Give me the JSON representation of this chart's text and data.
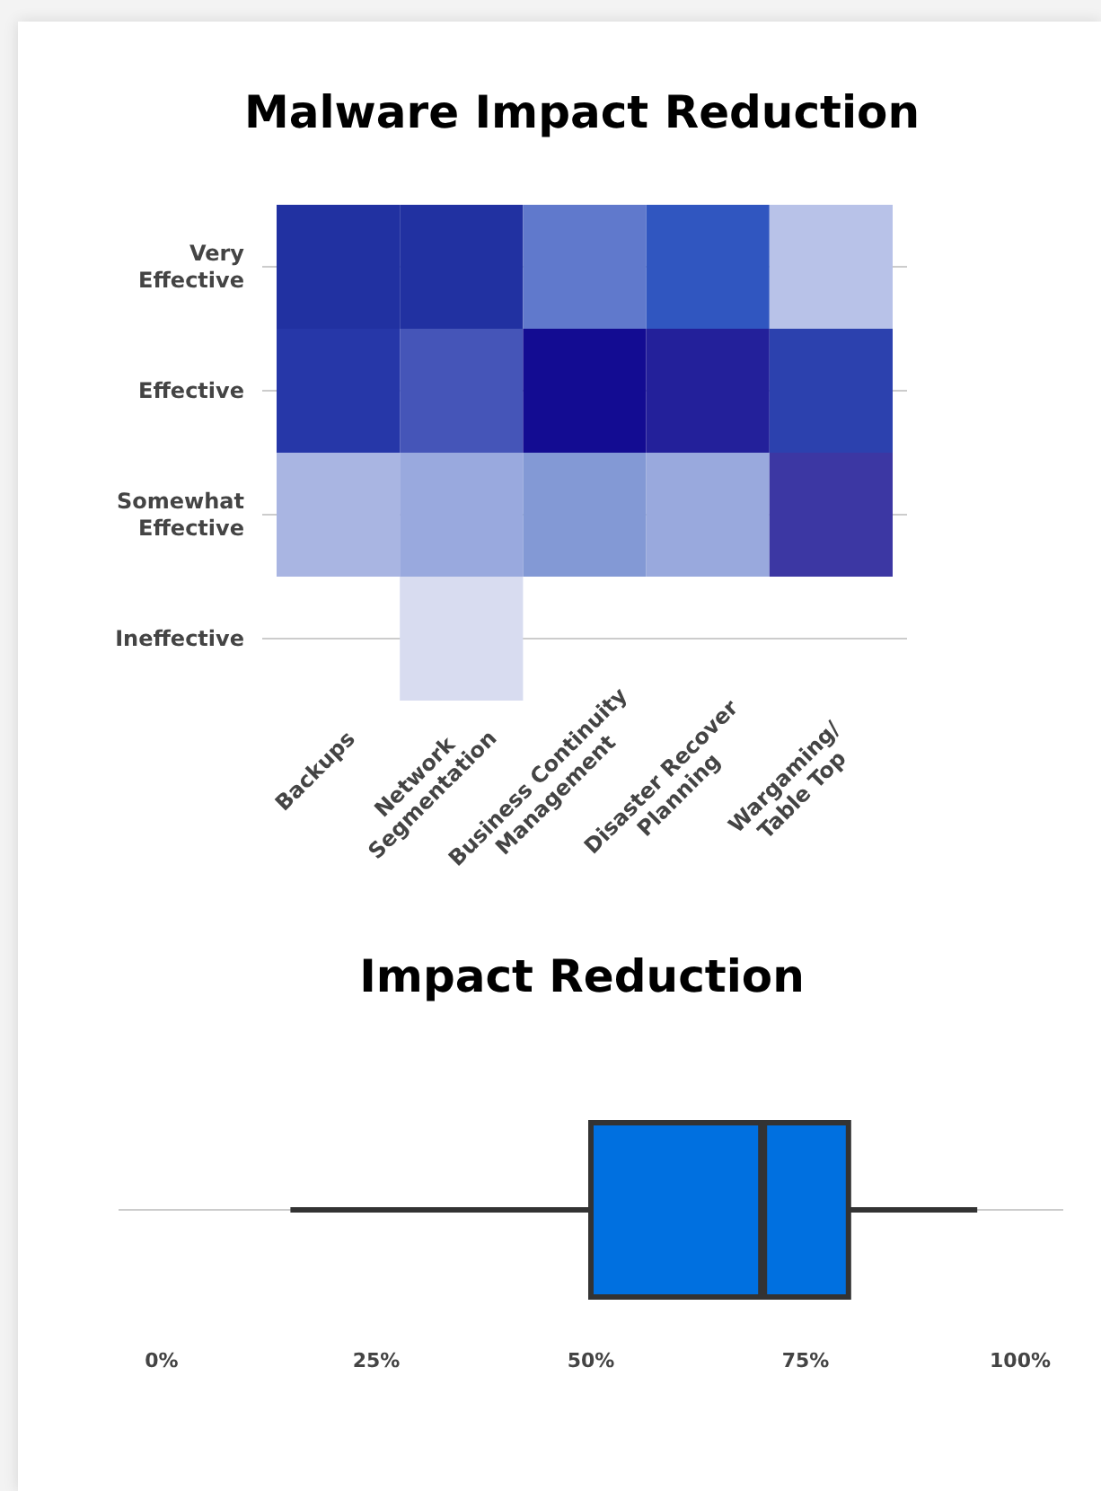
{
  "chart_data": [
    {
      "type": "other",
      "title": "Malware Impact Reduction",
      "categories": [
        "Backups",
        "Network Segmentation",
        "Business Continuity Management",
        "Disaster Recover Planning",
        "Wargaming/ Table Top"
      ],
      "y_categories": [
        "Very Effective",
        "Effective",
        "Somewhat Effective",
        "Ineffective"
      ],
      "colors": [
        [
          "#2131a1",
          "#2131a1",
          "#6079cc",
          "#3056c0",
          "#b8c2e8"
        ],
        [
          "#2637a8",
          "#4555b8",
          "#130c92",
          "#23209a",
          "#2c41ae"
        ],
        [
          "#a9b5e2",
          "#99a9de",
          "#8399d5",
          "#99a9dd",
          "#3c37a3"
        ],
        [
          null,
          "#d8dcf0",
          null,
          null,
          null
        ]
      ]
    },
    {
      "type": "box",
      "title": "Impact Reduction",
      "orientation": "horizontal",
      "color": "#0070e0",
      "categories": [
        null
      ],
      "boxes": [
        {
          "low": 15,
          "q1": 50,
          "median": 70,
          "q3": 80,
          "high": 95
        }
      ],
      "xlim": [
        0,
        100
      ],
      "xticks": [
        {
          "value": 0,
          "label": "0%"
        },
        {
          "value": 25,
          "label": "25%"
        },
        {
          "value": 50,
          "label": "50%"
        },
        {
          "value": 75,
          "label": "75%"
        },
        {
          "value": 100,
          "label": "100%"
        }
      ]
    }
  ]
}
